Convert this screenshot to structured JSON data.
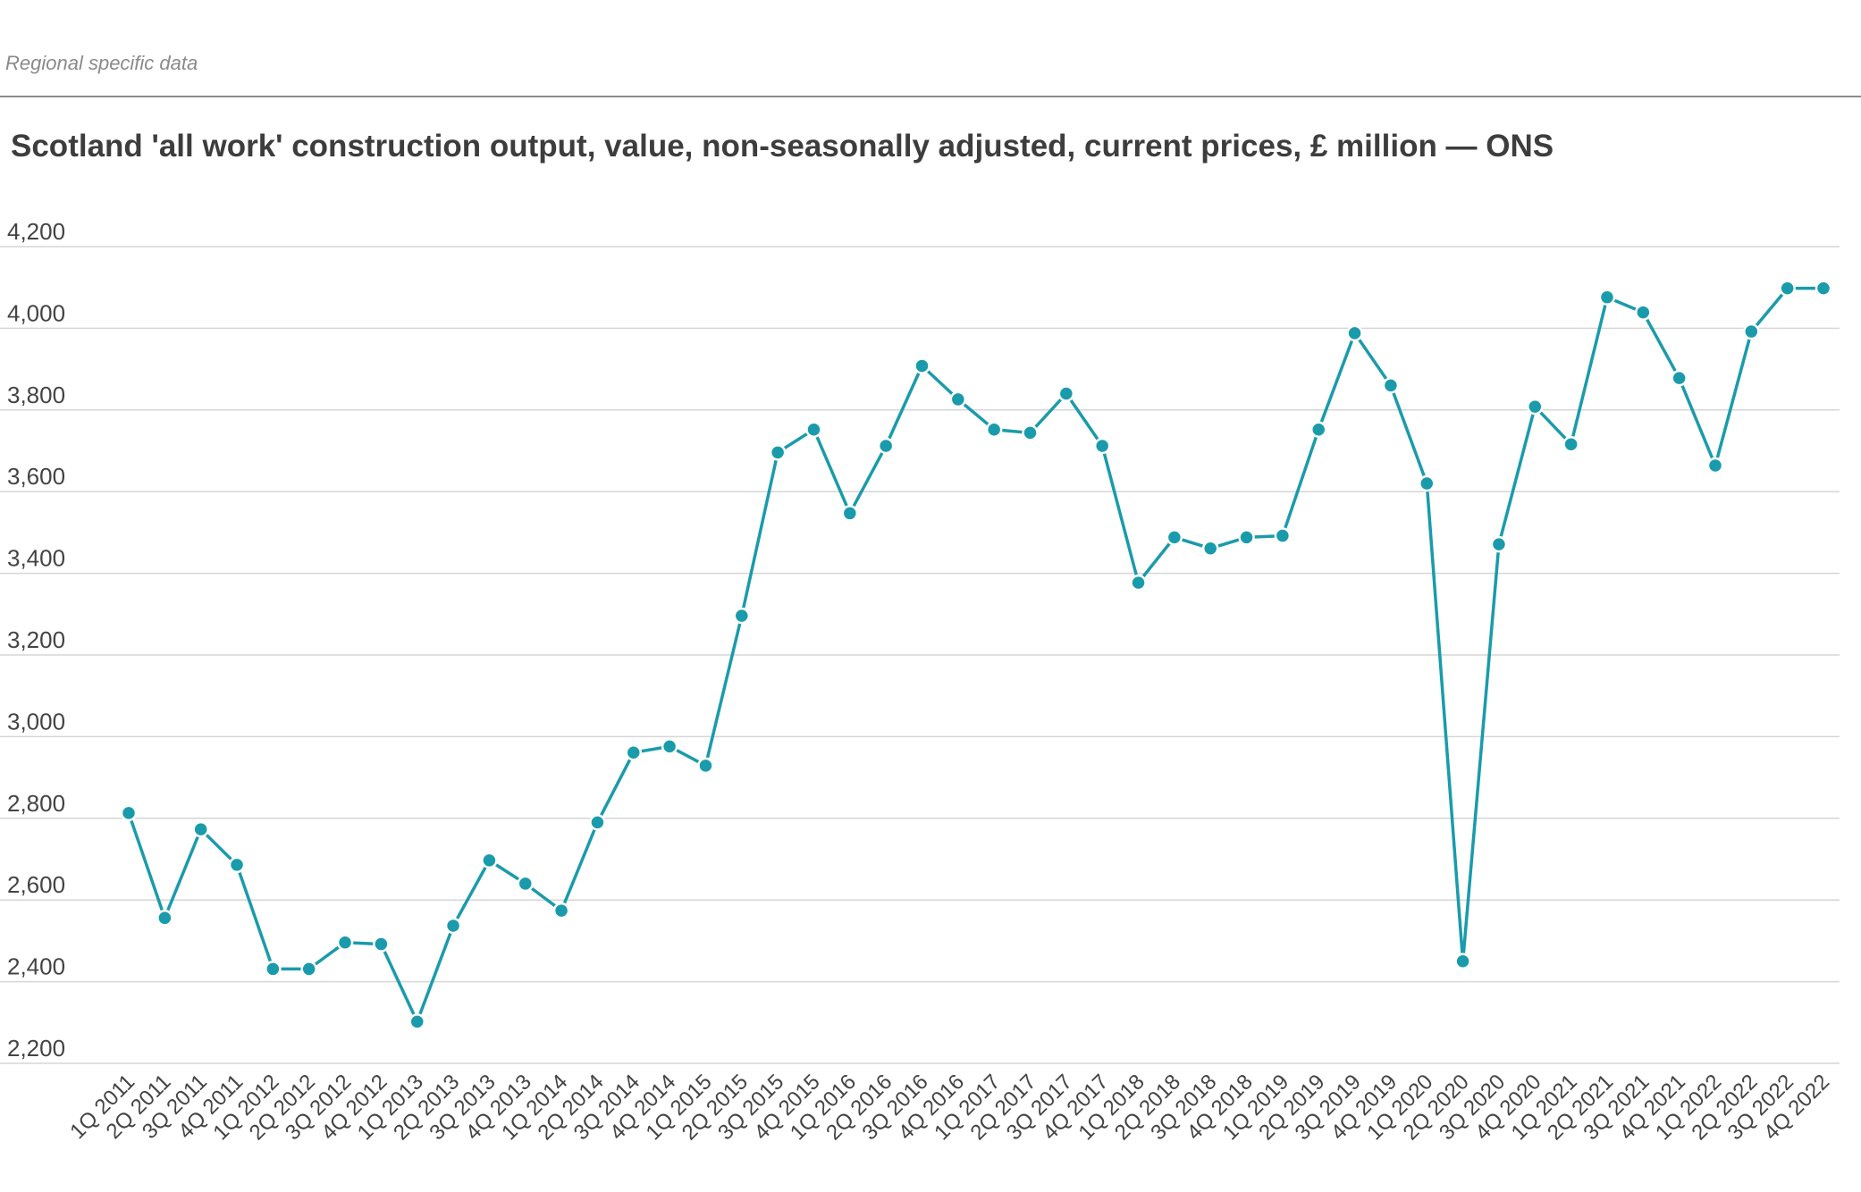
{
  "header": {
    "label": "Regional specific data"
  },
  "chart_data": {
    "type": "line",
    "title": "Scotland 'all work' construction output, value, non-seasonally adjusted, current prices, £ million — ONS",
    "xlabel": "",
    "ylabel": "",
    "ylim": [
      2200,
      4200
    ],
    "y_ticks": [
      2200,
      2400,
      2600,
      2800,
      3000,
      3200,
      3400,
      3600,
      3800,
      4000,
      4200
    ],
    "y_tick_labels": [
      "2,200",
      "2,400",
      "2,600",
      "2,800",
      "3,000",
      "3,200",
      "3,400",
      "3,600",
      "3,800",
      "4,000",
      "4,200"
    ],
    "grid": true,
    "legend": "none",
    "color": "#1a9bab",
    "categories": [
      "1Q 2011",
      "2Q 2011",
      "3Q 2011",
      "4Q 2011",
      "1Q 2012",
      "2Q 2012",
      "3Q 2012",
      "4Q 2012",
      "1Q 2013",
      "2Q 2013",
      "3Q 2013",
      "4Q 2013",
      "1Q 2014",
      "2Q 2014",
      "3Q 2014",
      "4Q 2014",
      "1Q 2015",
      "2Q 2015",
      "3Q 2015",
      "4Q 2015",
      "1Q 2016",
      "2Q 2016",
      "3Q 2016",
      "4Q 2016",
      "1Q 2017",
      "2Q 2017",
      "3Q 2017",
      "4Q 2017",
      "1Q 2018",
      "2Q 2018",
      "3Q 2018",
      "4Q 2018",
      "1Q 2019",
      "2Q 2019",
      "3Q 2019",
      "4Q 2019",
      "1Q 2020",
      "2Q 2020",
      "3Q 2020",
      "4Q 2020",
      "1Q 2021",
      "2Q 2021",
      "3Q 2021",
      "4Q 2021",
      "1Q 2022",
      "2Q 2022",
      "3Q 2022",
      "4Q 2022"
    ],
    "series": [
      {
        "values": [
          2813,
          2556,
          2773,
          2686,
          2431,
          2431,
          2496,
          2492,
          2302,
          2537,
          2697,
          2640,
          2574,
          2790,
          2961,
          2976,
          2929,
          3296,
          3696,
          3752,
          3547,
          3712,
          3908,
          3826,
          3752,
          3744,
          3840,
          3712,
          3377,
          3488,
          3461,
          3488,
          3492,
          3752,
          3988,
          3860,
          3620,
          2450,
          3471,
          3808,
          3716,
          4076,
          4039,
          3878,
          3664,
          3992,
          4098,
          4098
        ]
      }
    ]
  }
}
